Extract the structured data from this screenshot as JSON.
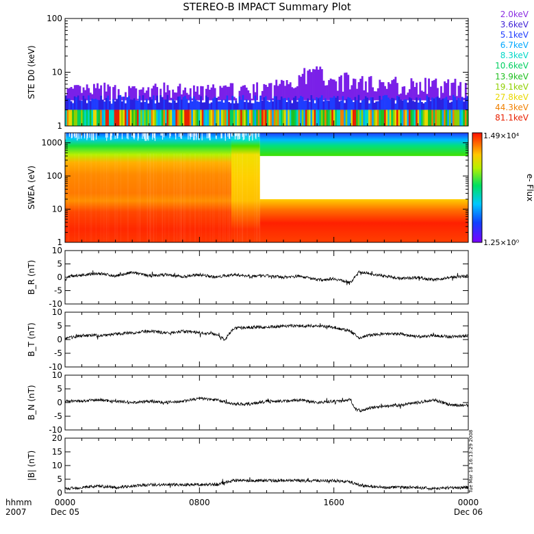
{
  "title": "STEREO-B IMPACT Summary Plot",
  "colors": {
    "background": "#ffffff",
    "axis": "#000000",
    "trace": "#000000"
  },
  "ste_legend": [
    {
      "label": "2.0keV",
      "color": "#8a2be2"
    },
    {
      "label": "3.6keV",
      "color": "#3d1fd6"
    },
    {
      "label": "5.1keV",
      "color": "#1e3cff"
    },
    {
      "label": "6.7keV",
      "color": "#00a8ff"
    },
    {
      "label": "8.3keV",
      "color": "#00d8c8"
    },
    {
      "label": "10.6keV",
      "color": "#00d060"
    },
    {
      "label": "13.9keV",
      "color": "#20c020"
    },
    {
      "label": "19.1keV",
      "color": "#90d000"
    },
    {
      "label": "27.8keV",
      "color": "#e8d800"
    },
    {
      "label": "44.3keV",
      "color": "#f08000"
    },
    {
      "label": "81.1keV",
      "color": "#e82000"
    }
  ],
  "colorbar": {
    "max_label": "1.49×10⁴",
    "min_label": "1.25×10⁰",
    "label": "e- Flux"
  },
  "stamp": "Tue Mar 18 16:13:29 2008",
  "x_axis": {
    "left_label_top": "hhmm",
    "left_label_bottom": "2007",
    "ticks": [
      {
        "top": "0000",
        "bottom": "Dec 05"
      },
      {
        "top": "0800",
        "bottom": ""
      },
      {
        "top": "1600",
        "bottom": ""
      },
      {
        "top": "0000",
        "bottom": "Dec 06"
      }
    ]
  },
  "chart_data": [
    {
      "id": "ste",
      "type": "bar",
      "ylabel": "STE D0 (keV)",
      "yscale": "log",
      "ylim": [
        1,
        100
      ],
      "ytick_labels": [
        "1",
        "10",
        "100"
      ],
      "xlim_hours": [
        0,
        24
      ],
      "envelope_hours": [
        0,
        2,
        4,
        6,
        8,
        10,
        12,
        14,
        15,
        16,
        18,
        20,
        22,
        24
      ],
      "envelope_keV": [
        4.5,
        5,
        4.5,
        5,
        4.5,
        5,
        5,
        9,
        11,
        8,
        7,
        6.5,
        6,
        6
      ]
    },
    {
      "id": "swea",
      "type": "heatmap",
      "ylabel": "SWEA (eV)",
      "yscale": "log",
      "ylim": [
        1,
        2000
      ],
      "ytick_labels": [
        "1",
        "10",
        "100",
        "1000"
      ],
      "xlim_hours": [
        0,
        24
      ],
      "gap_start_hour": 11.6,
      "gap_eV": [
        20,
        400
      ]
    },
    {
      "id": "br",
      "type": "line",
      "ylabel": "B_R (nT)",
      "ylim": [
        -10,
        10
      ],
      "ytick_labels": [
        "10",
        "5",
        "0",
        "-5",
        "-10"
      ],
      "x_hours": [
        0,
        0.3,
        1,
        2,
        3,
        4,
        5,
        6,
        7,
        8,
        9,
        10,
        11,
        12,
        13,
        14,
        15,
        16,
        17,
        17.5,
        18,
        19,
        20,
        21,
        22,
        23,
        24
      ],
      "y": [
        -1,
        0.5,
        0.8,
        1.5,
        0.5,
        1.8,
        0.5,
        1,
        0.2,
        1,
        0,
        1,
        0.5,
        0.5,
        0,
        0.5,
        -1,
        -0.5,
        -2,
        2,
        1.5,
        0.5,
        -0.5,
        0,
        -1,
        0,
        0.5
      ]
    },
    {
      "id": "bt",
      "type": "line",
      "ylabel": "B_T (nT)",
      "ylim": [
        -10,
        10
      ],
      "ytick_labels": [
        "10",
        "5",
        "0",
        "-5",
        "-10"
      ],
      "x_hours": [
        0,
        1,
        2,
        3,
        4,
        5,
        6,
        7,
        8,
        9,
        9.5,
        10,
        11,
        12,
        13,
        14,
        15,
        16,
        17,
        17.5,
        18,
        19,
        20,
        21,
        22,
        23,
        24
      ],
      "y": [
        0.5,
        1.5,
        1.5,
        2,
        2.5,
        3,
        2.5,
        3,
        2.5,
        2,
        0,
        4,
        4.5,
        4.5,
        5,
        5,
        5,
        4.5,
        3,
        0.5,
        1.5,
        2,
        2,
        1,
        1.5,
        1,
        1.5
      ]
    },
    {
      "id": "bn",
      "type": "line",
      "ylabel": "B_N (nT)",
      "ylim": [
        -10,
        10
      ],
      "ytick_labels": [
        "10",
        "5",
        "0",
        "-5",
        "-10"
      ],
      "x_hours": [
        0,
        1,
        2,
        3,
        4,
        5,
        6,
        7,
        8,
        9,
        10,
        11,
        12,
        13,
        14,
        15,
        16,
        17,
        17.3,
        17.6,
        18,
        19,
        20,
        21,
        22,
        23,
        24
      ],
      "y": [
        0.5,
        0.5,
        1,
        0.5,
        0,
        0.5,
        0,
        0.5,
        1.5,
        1,
        -0.5,
        -0.5,
        0.5,
        0.5,
        1,
        0,
        0.5,
        1,
        -2.5,
        -3,
        -2,
        -1.5,
        -1,
        0,
        1,
        -1,
        -1
      ]
    },
    {
      "id": "bmag",
      "type": "line",
      "ylabel": "|B| (nT)",
      "ylim": [
        0,
        20
      ],
      "ytick_labels": [
        "20",
        "15",
        "10",
        "5",
        "0"
      ],
      "x_hours": [
        0,
        1,
        2,
        3,
        4,
        5,
        6,
        7,
        8,
        9,
        10,
        11,
        12,
        13,
        14,
        15,
        16,
        17,
        17.5,
        18,
        19,
        20,
        21,
        22,
        23,
        24
      ],
      "y": [
        1.5,
        2,
        2.5,
        2,
        2.5,
        3,
        3,
        3,
        3,
        3,
        4.5,
        4.5,
        4.5,
        4.5,
        4.5,
        4.5,
        4.5,
        4,
        3,
        2.5,
        2,
        2,
        2,
        1.5,
        2,
        2
      ]
    }
  ]
}
